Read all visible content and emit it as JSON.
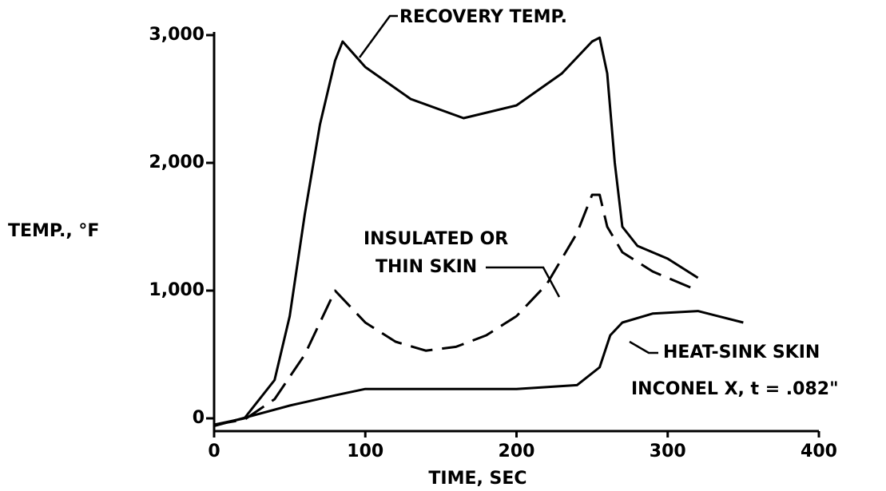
{
  "chart_data": {
    "type": "line",
    "xlabel": "TIME, SEC",
    "ylabel": "TEMP., °F",
    "xlim": [
      0,
      400
    ],
    "xticks": [
      0,
      100,
      200,
      300,
      400
    ],
    "ylim": [
      -100,
      3100
    ],
    "yticks": [
      0,
      {
        "value": 1000,
        "label": "1,000"
      },
      {
        "value": 2000,
        "label": "2,000"
      },
      {
        "value": 3000,
        "label": "3,000"
      }
    ],
    "annotations": [
      "RECOVERY TEMP.",
      "INSULATED OR",
      "THIN SKIN",
      "HEAT-SINK SKIN",
      "INCONEL X, t = .082\""
    ],
    "series": [
      {
        "color": "#000000",
        "dashed": false,
        "x": [
          0,
          20,
          40,
          50,
          60,
          70,
          80,
          85,
          100,
          130,
          165,
          200,
          230,
          250,
          255,
          260,
          265,
          270,
          280,
          300,
          320
        ],
        "values": [
          -50,
          0,
          300,
          800,
          1600,
          2300,
          2800,
          2950,
          2750,
          2500,
          2350,
          2450,
          2700,
          2950,
          2980,
          2700,
          2000,
          1500,
          1350,
          1250,
          1100
        ]
      },
      {
        "color": "#000000",
        "dashed": true,
        "x": [
          0,
          20,
          40,
          60,
          80,
          100,
          120,
          140,
          160,
          180,
          200,
          220,
          240,
          250,
          255,
          260,
          270,
          290,
          320
        ],
        "values": [
          -50,
          -10,
          150,
          500,
          1000,
          750,
          600,
          530,
          560,
          650,
          800,
          1050,
          1450,
          1750,
          1750,
          1500,
          1300,
          1150,
          1000
        ]
      },
      {
        "color": "#000000",
        "dashed": false,
        "x": [
          0,
          50,
          80,
          100,
          150,
          200,
          240,
          255,
          262,
          270,
          290,
          320,
          350
        ],
        "values": [
          -60,
          100,
          180,
          230,
          230,
          230,
          260,
          400,
          650,
          750,
          820,
          840,
          750
        ]
      }
    ]
  }
}
